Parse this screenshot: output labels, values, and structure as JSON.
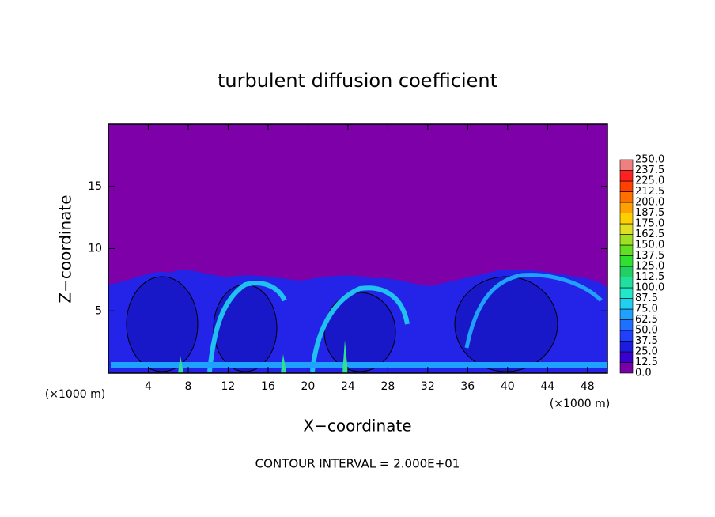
{
  "chart_data": {
    "type": "contour",
    "title": "turbulent diffusion coefficient",
    "xlabel": "X−coordinate",
    "ylabel": "Z−coordinate",
    "x_unit": "(×1000 m)",
    "footer": "CONTOUR INTERVAL = 2.000E+01",
    "xlim": [
      0,
      50
    ],
    "ylim": [
      0,
      20
    ],
    "xticks": [
      4,
      8,
      12,
      16,
      20,
      24,
      28,
      32,
      36,
      40,
      44,
      48
    ],
    "yticks": [
      5,
      10,
      15
    ],
    "colorbar": {
      "levels": [
        {
          "value": 0,
          "label": "0.0"
        },
        12.5,
        {
          "value": 25,
          "label": "25.0"
        },
        37.5,
        {
          "value": 50,
          "label": "50.0"
        },
        62.5,
        {
          "value": 75,
          "label": "75.0"
        },
        87.5,
        {
          "value": 100,
          "label": "100.0"
        },
        112.5,
        {
          "value": 125,
          "label": "125.0"
        },
        137.5,
        {
          "value": 150,
          "label": "150.0"
        },
        162.5,
        {
          "value": 175,
          "label": "175.0"
        },
        187.5,
        {
          "value": 200,
          "label": "200.0"
        },
        212.5,
        {
          "value": 225,
          "label": "225.0"
        },
        237.5,
        {
          "value": 250,
          "label": "250.0"
        }
      ],
      "colors": [
        "#7800a8",
        "#3a00d0",
        "#1c1ce0",
        "#2040ff",
        "#2070ff",
        "#20a0ff",
        "#20d0f0",
        "#20e8c8",
        "#20e0a0",
        "#20d060",
        "#30e030",
        "#60e020",
        "#a0e020",
        "#e0e020",
        "#ffd000",
        "#ffa000",
        "#ff7000",
        "#ff4000",
        "#ff2020",
        "#f08080"
      ]
    }
  }
}
